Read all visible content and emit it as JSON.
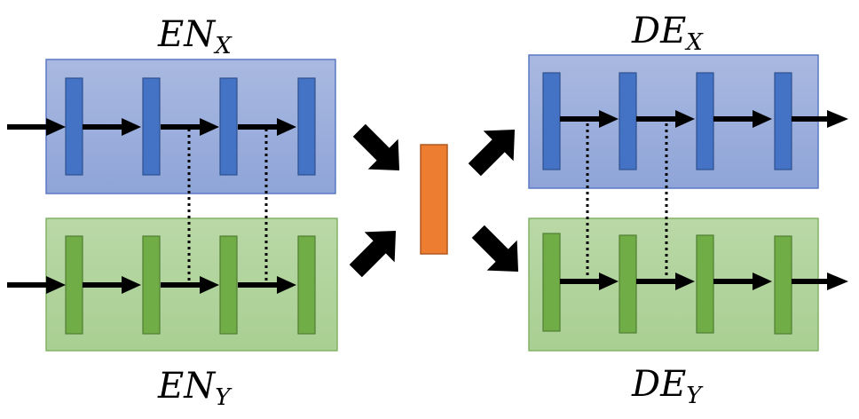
{
  "labels": {
    "en_x": {
      "main": "EN",
      "sub": "X"
    },
    "en_y": {
      "main": "EN",
      "sub": "Y"
    },
    "de_x": {
      "main": "DE",
      "sub": "X"
    },
    "de_y": {
      "main": "DE",
      "sub": "Y"
    }
  },
  "colors": {
    "encoder_x_box_top": "#a9b9e0",
    "encoder_x_box_bottom": "#8fa4d8",
    "encoder_x_box_border": "#5b78c4",
    "encoder_x_layer": "#4472c4",
    "encoder_x_layer_border": "#2f528f",
    "encoder_y_box_top": "#b9d8a6",
    "encoder_y_box_bottom": "#a9cf93",
    "encoder_y_box_border": "#82b366",
    "encoder_y_layer": "#70ad47",
    "encoder_y_layer_border": "#507e32",
    "latent": "#ed7d31",
    "latent_border": "#ae5a21",
    "arrow": "#000000"
  },
  "icons": {
    "flow_arrow": "arrow-right-icon",
    "merge_arrow": "block-arrow-icon",
    "skip_link": "dotted-connector"
  }
}
